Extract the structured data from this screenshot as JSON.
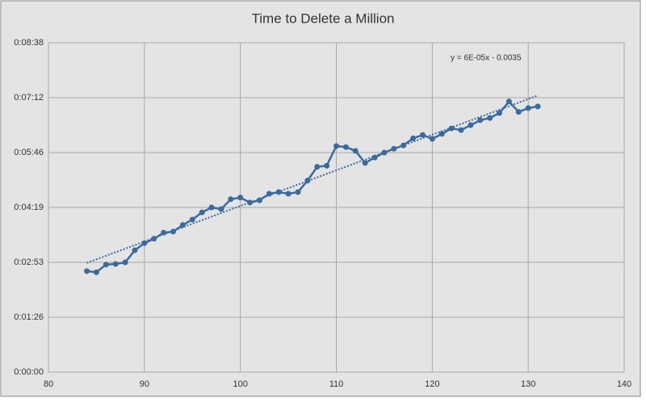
{
  "chart_data": {
    "type": "line",
    "title": "Time to Delete a Million",
    "x": [
      84,
      85,
      86,
      87,
      88,
      89,
      90,
      91,
      92,
      93,
      94,
      95,
      96,
      97,
      98,
      99,
      100,
      101,
      102,
      103,
      104,
      105,
      106,
      107,
      108,
      109,
      110,
      111,
      112,
      113,
      114,
      115,
      116,
      117,
      118,
      119,
      120,
      121,
      122,
      123,
      124,
      125,
      126,
      127,
      128,
      129,
      130,
      131
    ],
    "series": [
      {
        "color": "#3b6a9e",
        "values": [
          0.00184,
          0.00182,
          0.00196,
          0.00197,
          0.002,
          0.00222,
          0.00235,
          0.00243,
          0.00254,
          0.00256,
          0.00268,
          0.00278,
          0.00291,
          0.003,
          0.00297,
          0.00315,
          0.00318,
          0.00309,
          0.00313,
          0.00325,
          0.00328,
          0.00325,
          0.00328,
          0.00349,
          0.00374,
          0.00376,
          0.00412,
          0.0041,
          0.00403,
          0.00381,
          0.00391,
          0.004,
          0.00407,
          0.00413,
          0.00426,
          0.00432,
          0.00425,
          0.00434,
          0.00444,
          0.00441,
          0.0045,
          0.00459,
          0.00463,
          0.00472,
          0.00493,
          0.00474,
          0.00481,
          0.00484
        ]
      }
    ],
    "trendline": {
      "x": [
        84,
        131
      ],
      "values": [
        0.00199,
        0.00504
      ],
      "color": "#3b6a9e",
      "dotted": true
    },
    "annotation": "y = 6E-05x - 0.0035",
    "xlim": [
      80,
      140
    ],
    "xticks": [
      80,
      90,
      100,
      110,
      120,
      130,
      140
    ],
    "ylim": [
      0,
      0.006
    ],
    "yticks": [
      {
        "value": 0,
        "label": "0:00:00"
      },
      {
        "value": 0.001,
        "label": "0:01:26"
      },
      {
        "value": 0.002,
        "label": "0:02:53"
      },
      {
        "value": 0.003,
        "label": "0:04:19"
      },
      {
        "value": 0.004,
        "label": "0:05:46"
      },
      {
        "value": 0.005,
        "label": "0:07:12"
      },
      {
        "value": 0.006,
        "label": "0:08:38"
      }
    ],
    "grid": true
  }
}
